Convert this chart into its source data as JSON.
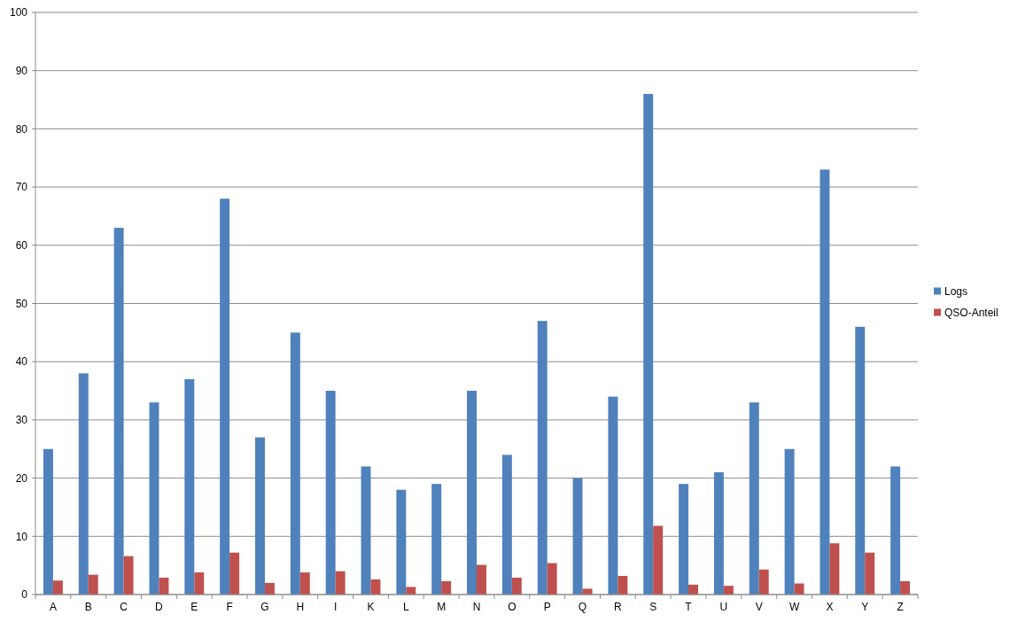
{
  "chart_data": {
    "type": "bar",
    "categories": [
      "A",
      "B",
      "C",
      "D",
      "E",
      "F",
      "G",
      "H",
      "I",
      "K",
      "L",
      "M",
      "N",
      "O",
      "P",
      "Q",
      "R",
      "S",
      "T",
      "U",
      "V",
      "W",
      "X",
      "Y",
      "Z"
    ],
    "series": [
      {
        "name": "Logs",
        "color": "#4f81bd",
        "values": [
          25,
          38,
          63,
          33,
          37,
          68,
          27,
          45,
          35,
          22,
          18,
          19,
          35,
          24,
          47,
          20,
          34,
          86,
          19,
          21,
          33,
          25,
          73,
          46,
          22
        ]
      },
      {
        "name": "QSO-Anteil",
        "color": "#c0504d",
        "values": [
          2.4,
          3.4,
          6.6,
          2.9,
          3.8,
          7.2,
          2.0,
          3.8,
          4.0,
          2.6,
          1.3,
          2.3,
          5.1,
          2.9,
          5.4,
          1.0,
          3.2,
          11.8,
          1.7,
          1.5,
          4.3,
          1.9,
          8.8,
          7.2,
          2.3
        ]
      }
    ],
    "ylim": [
      0,
      100
    ],
    "yticks": [
      0,
      10,
      20,
      30,
      40,
      50,
      60,
      70,
      80,
      90,
      100
    ],
    "grid": "y",
    "legend": "right"
  }
}
